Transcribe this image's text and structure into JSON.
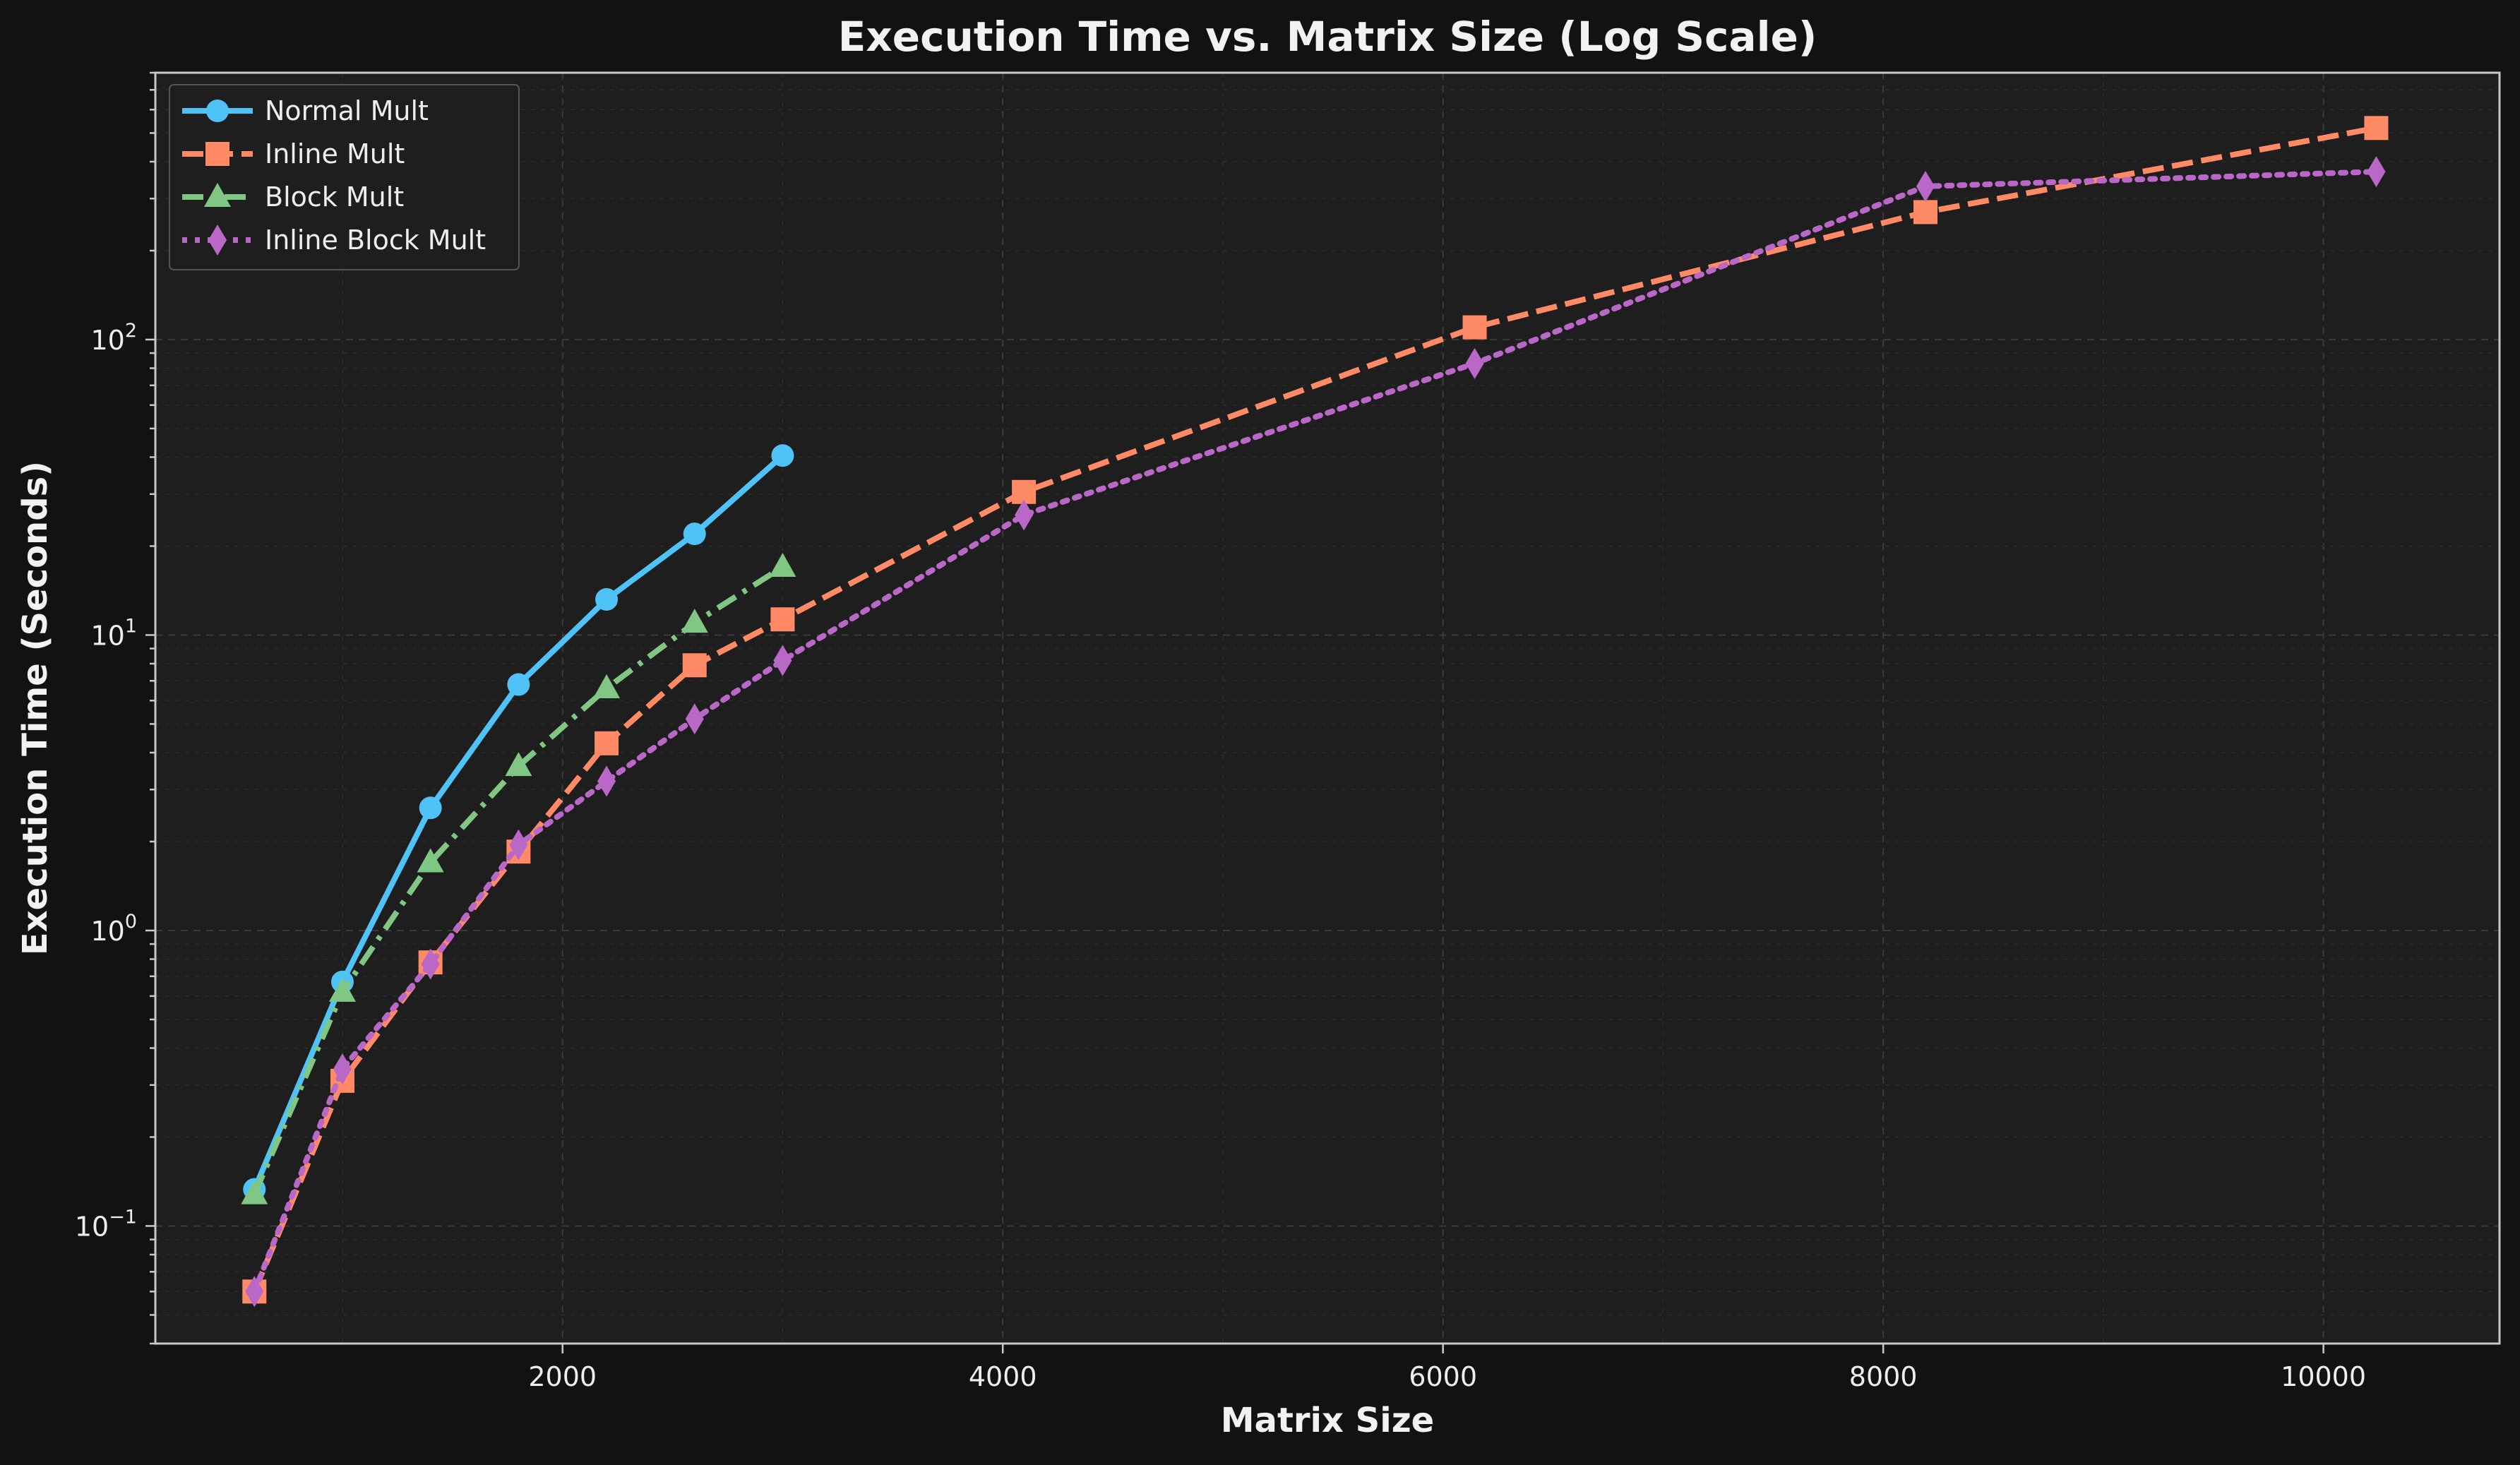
{
  "chart_data": {
    "type": "line",
    "title": "Execution Time vs. Matrix Size (Log Scale)",
    "xlabel": "Matrix Size",
    "ylabel": "Execution Time (Seconds)",
    "xlim": [
      150,
      10800
    ],
    "ylim": [
      0.04,
      800
    ],
    "yscale": "log",
    "grid": true,
    "legend_position": "top-left",
    "x_ticks": [
      {
        "value": 2000,
        "label": "2000"
      },
      {
        "value": 4000,
        "label": "4000"
      },
      {
        "value": 6000,
        "label": "6000"
      },
      {
        "value": 8000,
        "label": "8000"
      },
      {
        "value": 10000,
        "label": "10000"
      }
    ],
    "y_ticks": [
      {
        "value": 0.1,
        "base": "10",
        "exp": "−1"
      },
      {
        "value": 1,
        "base": "10",
        "exp": "0"
      },
      {
        "value": 10,
        "base": "10",
        "exp": "1"
      },
      {
        "value": 100,
        "base": "10",
        "exp": "2"
      }
    ],
    "series": [
      {
        "name": "Normal Mult",
        "color": "#4fc3f7",
        "line_style": "solid",
        "marker": "circle",
        "x": [
          600,
          1000,
          1400,
          1800,
          2200,
          2600,
          3000
        ],
        "y": [
          0.133,
          0.67,
          2.6,
          6.8,
          13.2,
          22,
          40.5
        ]
      },
      {
        "name": "Inline Mult",
        "color": "#ff8a65",
        "line_style": "dashed",
        "marker": "square",
        "x": [
          600,
          1000,
          1400,
          1800,
          2200,
          2600,
          3000,
          4096,
          6144,
          8192,
          10240
        ],
        "y": [
          0.06,
          0.31,
          0.78,
          1.85,
          4.3,
          7.9,
          11.3,
          30.5,
          110,
          270,
          520
        ]
      },
      {
        "name": "Block Mult",
        "color": "#81c784",
        "line_style": "dashdot",
        "marker": "triangle",
        "x": [
          600,
          1000,
          1400,
          1800,
          2200,
          2600,
          3000
        ],
        "y": [
          0.128,
          0.62,
          1.7,
          3.6,
          6.6,
          11,
          17
        ]
      },
      {
        "name": "Inline Block Mult",
        "color": "#ba68c8",
        "line_style": "dotted",
        "marker": "diamond",
        "x": [
          600,
          1000,
          1400,
          1800,
          2200,
          2600,
          3000,
          4096,
          6144,
          8192,
          10240
        ],
        "y": [
          0.06,
          0.34,
          0.77,
          1.95,
          3.2,
          5.2,
          8.2,
          25.5,
          83,
          330,
          370
        ]
      }
    ]
  }
}
